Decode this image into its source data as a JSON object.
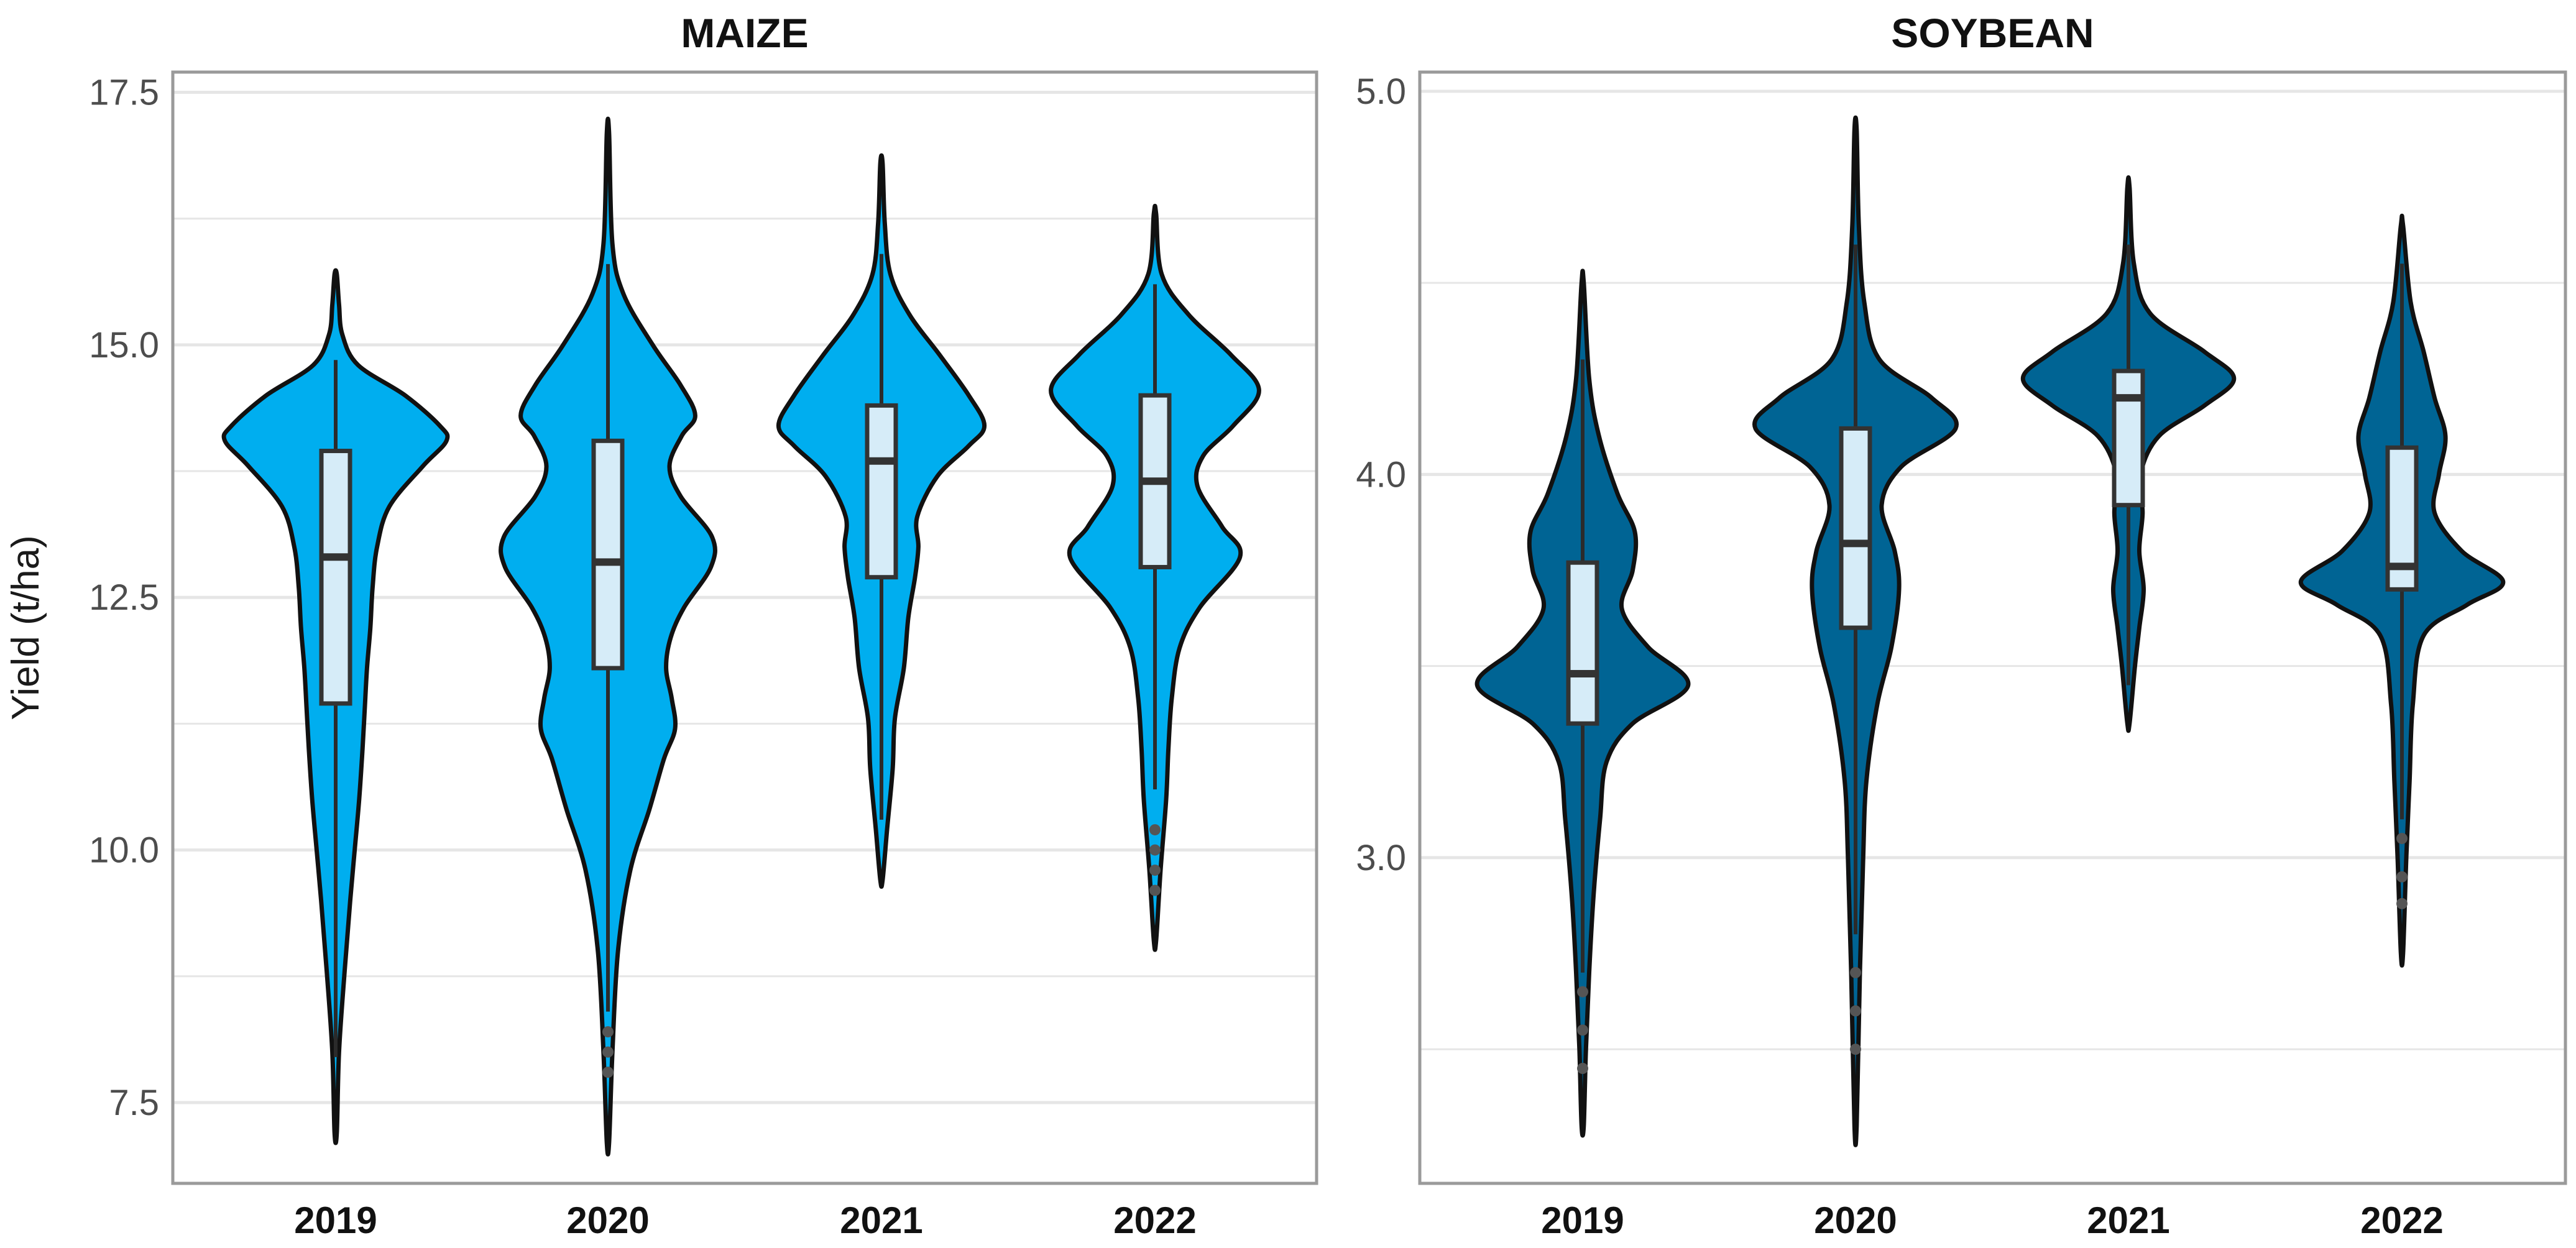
{
  "ylabel": "Yield (t/ha)",
  "colors": {
    "maize_violin": "#00AEEF",
    "soybean_violin": "#006494",
    "box_fill": "#D6ECF8",
    "grid": "#e6e6e6",
    "panel_border": "#9a9a9a"
  },
  "chart_data": [
    {
      "type": "violin",
      "title": "MAIZE",
      "xlabel": "",
      "ylabel": "Yield (t/ha)",
      "ylim": [
        6.7,
        17.7
      ],
      "yticks": [
        7.5,
        10.0,
        12.5,
        15.0,
        17.5
      ],
      "ytick_labels": [
        "7.5",
        "10.0",
        "12.5",
        "15.0",
        "17.5"
      ],
      "grid": true,
      "categories": [
        "2019",
        "2020",
        "2021",
        "2022"
      ],
      "groups": [
        {
          "category": "2019",
          "range": [
            7.2,
            15.7
          ],
          "box": {
            "q1": 11.45,
            "median": 12.9,
            "q3": 13.95
          },
          "whisker": [
            7.95,
            14.85
          ],
          "outliers": [],
          "density": [
            [
              7.2,
              0.01
            ],
            [
              8.0,
              0.03
            ],
            [
              8.8,
              0.08
            ],
            [
              9.5,
              0.13
            ],
            [
              10.0,
              0.17
            ],
            [
              10.5,
              0.21
            ],
            [
              11.0,
              0.24
            ],
            [
              11.4,
              0.26
            ],
            [
              11.8,
              0.28
            ],
            [
              12.2,
              0.31
            ],
            [
              12.6,
              0.33
            ],
            [
              13.0,
              0.37
            ],
            [
              13.4,
              0.48
            ],
            [
              13.8,
              0.78
            ],
            [
              14.05,
              0.99
            ],
            [
              14.2,
              0.93
            ],
            [
              14.5,
              0.62
            ],
            [
              14.8,
              0.2
            ],
            [
              15.1,
              0.06
            ],
            [
              15.4,
              0.03
            ],
            [
              15.7,
              0.01
            ]
          ]
        },
        {
          "category": "2020",
          "range": [
            7.1,
            17.1
          ],
          "box": {
            "q1": 11.8,
            "median": 12.85,
            "q3": 14.05
          },
          "whisker": [
            8.4,
            15.8
          ],
          "outliers": [
            7.8,
            8.0,
            8.2
          ],
          "density": [
            [
              7.1,
              0.01
            ],
            [
              8.0,
              0.04
            ],
            [
              9.0,
              0.09
            ],
            [
              9.8,
              0.2
            ],
            [
              10.4,
              0.37
            ],
            [
              10.9,
              0.5
            ],
            [
              11.2,
              0.6
            ],
            [
              11.5,
              0.57
            ],
            [
              11.8,
              0.52
            ],
            [
              12.1,
              0.56
            ],
            [
              12.4,
              0.68
            ],
            [
              12.8,
              0.92
            ],
            [
              13.1,
              0.93
            ],
            [
              13.5,
              0.65
            ],
            [
              13.8,
              0.55
            ],
            [
              14.1,
              0.66
            ],
            [
              14.3,
              0.78
            ],
            [
              14.6,
              0.65
            ],
            [
              15.0,
              0.4
            ],
            [
              15.5,
              0.14
            ],
            [
              16.0,
              0.04
            ],
            [
              17.1,
              0.01
            ]
          ]
        },
        {
          "category": "2021",
          "range": [
            9.7,
            16.8
          ],
          "box": {
            "q1": 12.7,
            "median": 13.85,
            "q3": 14.4
          },
          "whisker": [
            10.3,
            15.9
          ],
          "outliers": [],
          "density": [
            [
              9.7,
              0.01
            ],
            [
              10.2,
              0.05
            ],
            [
              10.8,
              0.1
            ],
            [
              11.3,
              0.12
            ],
            [
              11.8,
              0.2
            ],
            [
              12.3,
              0.24
            ],
            [
              12.7,
              0.3
            ],
            [
              13.0,
              0.33
            ],
            [
              13.3,
              0.32
            ],
            [
              13.7,
              0.5
            ],
            [
              14.0,
              0.78
            ],
            [
              14.2,
              0.92
            ],
            [
              14.5,
              0.78
            ],
            [
              14.9,
              0.52
            ],
            [
              15.3,
              0.25
            ],
            [
              15.7,
              0.08
            ],
            [
              16.2,
              0.03
            ],
            [
              16.8,
              0.01
            ]
          ]
        },
        {
          "category": "2022",
          "range": [
            9.1,
            16.3
          ],
          "box": {
            "q1": 12.8,
            "median": 13.65,
            "q3": 14.5
          },
          "whisker": [
            10.6,
            15.6
          ],
          "outliers": [
            9.6,
            9.8,
            10.0,
            10.2
          ],
          "density": [
            [
              9.1,
              0.01
            ],
            [
              9.8,
              0.05
            ],
            [
              10.5,
              0.1
            ],
            [
              11.0,
              0.12
            ],
            [
              11.5,
              0.15
            ],
            [
              12.0,
              0.22
            ],
            [
              12.4,
              0.4
            ],
            [
              12.9,
              0.76
            ],
            [
              13.2,
              0.6
            ],
            [
              13.6,
              0.38
            ],
            [
              13.9,
              0.43
            ],
            [
              14.2,
              0.7
            ],
            [
              14.55,
              0.93
            ],
            [
              14.9,
              0.68
            ],
            [
              15.3,
              0.3
            ],
            [
              15.7,
              0.06
            ],
            [
              16.3,
              0.01
            ]
          ]
        }
      ]
    },
    {
      "type": "violin",
      "title": "SOYBEAN",
      "xlabel": "",
      "ylabel": "",
      "ylim": [
        2.15,
        5.05
      ],
      "yticks": [
        3.0,
        4.0,
        5.0
      ],
      "ytick_labels": [
        "3.0",
        "4.0",
        "5.0"
      ],
      "grid": true,
      "categories": [
        "2019",
        "2020",
        "2021",
        "2022"
      ],
      "groups": [
        {
          "category": "2019",
          "range": [
            2.3,
            4.5
          ],
          "box": {
            "q1": 3.35,
            "median": 3.48,
            "q3": 3.77
          },
          "whisker": [
            2.7,
            4.3
          ],
          "outliers": [
            2.45,
            2.55,
            2.65
          ],
          "density": [
            [
              2.3,
              0.01
            ],
            [
              2.5,
              0.03
            ],
            [
              2.7,
              0.06
            ],
            [
              2.9,
              0.1
            ],
            [
              3.1,
              0.16
            ],
            [
              3.25,
              0.22
            ],
            [
              3.35,
              0.46
            ],
            [
              3.45,
              0.97
            ],
            [
              3.55,
              0.6
            ],
            [
              3.65,
              0.36
            ],
            [
              3.75,
              0.46
            ],
            [
              3.85,
              0.48
            ],
            [
              3.95,
              0.32
            ],
            [
              4.1,
              0.15
            ],
            [
              4.25,
              0.06
            ],
            [
              4.5,
              0.01
            ]
          ]
        },
        {
          "category": "2020",
          "range": [
            2.3,
            4.9
          ],
          "box": {
            "q1": 3.6,
            "median": 3.82,
            "q3": 4.12
          },
          "whisker": [
            2.8,
            4.6
          ],
          "outliers": [
            2.5,
            2.6,
            2.7
          ],
          "density": [
            [
              2.3,
              0.01
            ],
            [
              2.7,
              0.04
            ],
            [
              3.0,
              0.07
            ],
            [
              3.2,
              0.1
            ],
            [
              3.4,
              0.2
            ],
            [
              3.55,
              0.33
            ],
            [
              3.7,
              0.4
            ],
            [
              3.8,
              0.36
            ],
            [
              3.92,
              0.24
            ],
            [
              4.02,
              0.42
            ],
            [
              4.12,
              0.92
            ],
            [
              4.2,
              0.7
            ],
            [
              4.3,
              0.22
            ],
            [
              4.45,
              0.08
            ],
            [
              4.65,
              0.03
            ],
            [
              4.9,
              0.01
            ]
          ]
        },
        {
          "category": "2021",
          "range": [
            3.35,
            4.75
          ],
          "box": {
            "q1": 3.92,
            "median": 4.2,
            "q3": 4.27
          },
          "whisker": [
            3.45,
            4.6
          ],
          "outliers": [],
          "density": [
            [
              3.35,
              0.01
            ],
            [
              3.5,
              0.06
            ],
            [
              3.6,
              0.1
            ],
            [
              3.7,
              0.14
            ],
            [
              3.8,
              0.1
            ],
            [
              3.9,
              0.13
            ],
            [
              4.0,
              0.11
            ],
            [
              4.1,
              0.28
            ],
            [
              4.18,
              0.7
            ],
            [
              4.25,
              0.97
            ],
            [
              4.32,
              0.7
            ],
            [
              4.42,
              0.2
            ],
            [
              4.55,
              0.05
            ],
            [
              4.75,
              0.01
            ]
          ]
        },
        {
          "category": "2022",
          "range": [
            2.75,
            4.65
          ],
          "box": {
            "q1": 3.7,
            "median": 3.76,
            "q3": 4.07
          },
          "whisker": [
            3.1,
            4.55
          ],
          "outliers": [
            2.88,
            2.95,
            3.05
          ],
          "density": [
            [
              2.75,
              0.01
            ],
            [
              3.0,
              0.04
            ],
            [
              3.2,
              0.07
            ],
            [
              3.4,
              0.1
            ],
            [
              3.58,
              0.2
            ],
            [
              3.66,
              0.6
            ],
            [
              3.72,
              0.93
            ],
            [
              3.8,
              0.55
            ],
            [
              3.9,
              0.3
            ],
            [
              4.0,
              0.34
            ],
            [
              4.1,
              0.4
            ],
            [
              4.2,
              0.3
            ],
            [
              4.32,
              0.2
            ],
            [
              4.45,
              0.08
            ],
            [
              4.65,
              0.01
            ]
          ]
        }
      ]
    }
  ]
}
